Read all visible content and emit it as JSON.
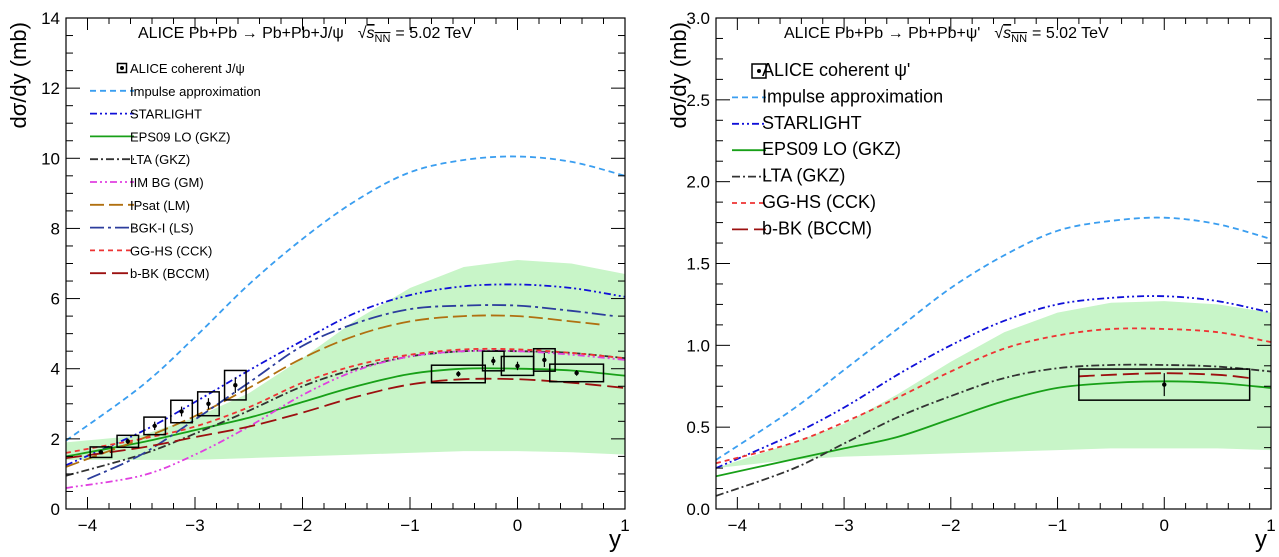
{
  "colors": {
    "band": "#c8f5c8",
    "impulse": "#3a9ef0",
    "starlight": "#1010d8",
    "eps09": "#18a018",
    "lta": "#333333",
    "iim": "#e040e0",
    "ipsat": "#b07010",
    "bgk": "#2c3d9c",
    "gghs": "#ee3333",
    "bbk": "#9c1010",
    "data": "#000000"
  },
  "chart_data": [
    {
      "type": "line",
      "title": "ALICE Pb+Pb → Pb+Pb+J/ψ",
      "title_energy_prefix": "√",
      "title_energy_s": "s",
      "title_energy_sub": "NN",
      "title_energy_value": "= 5.02 TeV",
      "xlabel": "y",
      "ylabel": "dσ/dy (mb)",
      "xlim": [
        -4.2,
        1
      ],
      "ylim": [
        0,
        14
      ],
      "xticks": [
        "−4",
        "−3",
        "−2",
        "−1",
        "0",
        "1"
      ],
      "xtick_values": [
        -4,
        -3,
        -2,
        -1,
        0,
        1
      ],
      "yticks": [
        "0",
        "2",
        "4",
        "6",
        "8",
        "10",
        "12",
        "14"
      ],
      "ytick_values": [
        0,
        2,
        4,
        6,
        8,
        10,
        12,
        14
      ],
      "grid": false,
      "legend_position": "top-left",
      "band": {
        "x": [
          -4.2,
          -3.5,
          -3,
          -2.5,
          -2,
          -1.5,
          -1,
          -0.5,
          0,
          0.5,
          1
        ],
        "upper": [
          1.9,
          2.1,
          2.6,
          3.3,
          4.3,
          5.4,
          6.3,
          6.9,
          7.1,
          7.0,
          6.7
        ],
        "lower": [
          1.4,
          1.4,
          1.4,
          1.45,
          1.5,
          1.55,
          1.6,
          1.65,
          1.65,
          1.62,
          1.55
        ]
      },
      "series": [
        {
          "name": "Impulse approximation",
          "color_key": "impulse",
          "dash": "6,4",
          "x": [
            -4.2,
            -3.5,
            -3,
            -2.5,
            -2,
            -1.5,
            -1,
            -0.5,
            0,
            0.5,
            1
          ],
          "y": [
            1.95,
            3.5,
            4.9,
            6.4,
            7.7,
            8.8,
            9.6,
            9.95,
            10.05,
            9.9,
            9.5
          ]
        },
        {
          "name": "STARLIGHT",
          "color_key": "starlight",
          "dash": "7,3,2,3,2,3",
          "x": [
            -4.2,
            -3.5,
            -3,
            -2.5,
            -2,
            -1.5,
            -1,
            -0.5,
            0,
            0.5,
            1
          ],
          "y": [
            1.25,
            2.2,
            3.05,
            3.95,
            4.8,
            5.6,
            6.1,
            6.35,
            6.4,
            6.3,
            6.05
          ]
        },
        {
          "name": "EPS09 LO (GKZ)",
          "color_key": "eps09",
          "dash": "",
          "x": [
            -4.2,
            -3.5,
            -3,
            -2.5,
            -2,
            -1.5,
            -1,
            -0.5,
            0,
            0.5,
            1
          ],
          "y": [
            1.5,
            1.9,
            2.25,
            2.6,
            3.05,
            3.5,
            3.85,
            4.0,
            4.0,
            3.95,
            3.8
          ]
        },
        {
          "name": "LTA (GKZ)",
          "color_key": "lta",
          "dash": "8,3,2,3",
          "x": [
            -4.2,
            -3.5,
            -3,
            -2.5,
            -2,
            -1.5,
            -1,
            -0.5,
            0,
            0.5,
            1
          ],
          "y": [
            0.95,
            1.55,
            2.15,
            2.8,
            3.5,
            4.0,
            4.35,
            4.5,
            4.5,
            4.45,
            4.3
          ]
        },
        {
          "name": "IIM BG (GM)",
          "color_key": "iim",
          "dash": "7,3,2,3,2,3",
          "x": [
            -4.2,
            -3.5,
            -3,
            -2.5,
            -2,
            -1.5,
            -1,
            -0.5,
            0,
            0.5,
            1
          ],
          "y": [
            0.6,
            0.95,
            1.55,
            2.35,
            3.25,
            3.95,
            4.35,
            4.5,
            4.5,
            4.4,
            4.25
          ]
        },
        {
          "name": "IPsat (LM)",
          "color_key": "ipsat",
          "dash": "14,5",
          "x": [
            -4.2,
            -3.5,
            -3,
            -2.5,
            -2,
            -1.5,
            -1,
            -0.5,
            0,
            0.5,
            0.8
          ],
          "y": [
            1.2,
            2.0,
            2.65,
            3.45,
            4.3,
            4.95,
            5.35,
            5.5,
            5.5,
            5.35,
            5.25
          ]
        },
        {
          "name": "BGK-I (LS)",
          "color_key": "bgk",
          "dash": "14,4,3,4",
          "x": [
            -4,
            -3.5,
            -3,
            -2.5,
            -2,
            -1.5,
            -1,
            -0.5,
            0,
            0.5,
            0.9
          ],
          "y": [
            0.85,
            1.55,
            2.55,
            3.6,
            4.65,
            5.3,
            5.7,
            5.8,
            5.8,
            5.65,
            5.5
          ]
        },
        {
          "name": "GG-HS (CCK)",
          "color_key": "gghs",
          "dash": "5,4",
          "x": [
            -4.2,
            -3.5,
            -3,
            -2.5,
            -2,
            -1.5,
            -1,
            -0.5,
            0,
            0.5,
            1
          ],
          "y": [
            1.6,
            2.0,
            2.35,
            2.9,
            3.6,
            4.1,
            4.4,
            4.55,
            4.55,
            4.45,
            4.3
          ]
        },
        {
          "name": "b-BK (BCCM)",
          "color_key": "bbk",
          "dash": "16,6",
          "x": [
            -4.2,
            -3.5,
            -3,
            -2.5,
            -2,
            -1.5,
            -1,
            -0.5,
            0,
            0.5,
            1
          ],
          "y": [
            1.45,
            1.75,
            2.05,
            2.35,
            2.75,
            3.2,
            3.55,
            3.7,
            3.7,
            3.6,
            3.45
          ]
        }
      ],
      "points": {
        "name": "ALICE coherent J/ψ",
        "x": [
          -3.875,
          -3.625,
          -3.375,
          -3.125,
          -2.875,
          -2.625,
          -0.55,
          -0.225,
          0.0,
          0.25,
          0.55
        ],
        "y": [
          1.62,
          1.93,
          2.37,
          2.78,
          3.0,
          3.53,
          3.85,
          4.22,
          4.08,
          4.25,
          3.88
        ],
        "stat": [
          0.05,
          0.08,
          0.12,
          0.14,
          0.16,
          0.22,
          0.08,
          0.12,
          0.12,
          0.2,
          0.08
        ],
        "sys": [
          0.15,
          0.17,
          0.25,
          0.32,
          0.34,
          0.42,
          0.25,
          0.28,
          0.27,
          0.32,
          0.25
        ],
        "xhalf": [
          0.1,
          0.1,
          0.1,
          0.1,
          0.1,
          0.1,
          0.25,
          0.1,
          0.15,
          0.1,
          0.25
        ]
      }
    },
    {
      "type": "line",
      "title": "ALICE Pb+Pb → Pb+Pb+ψ'",
      "title_energy_prefix": "√",
      "title_energy_s": "s",
      "title_energy_sub": "NN",
      "title_energy_value": "= 5.02 TeV",
      "xlabel": "y",
      "ylabel": "dσ/dy (mb)",
      "xlim": [
        -4.2,
        1
      ],
      "ylim": [
        0,
        3
      ],
      "xticks": [
        "−4",
        "−3",
        "−2",
        "−1",
        "0",
        "1"
      ],
      "xtick_values": [
        -4,
        -3,
        -2,
        -1,
        0,
        1
      ],
      "yticks": [
        "0.0",
        "0.5",
        "1.0",
        "1.5",
        "2.0",
        "2.5",
        "3.0"
      ],
      "ytick_values": [
        0,
        0.5,
        1,
        1.5,
        2,
        2.5,
        3
      ],
      "grid": false,
      "legend_position": "top-left",
      "band": {
        "x": [
          -4.2,
          -3.5,
          -3,
          -2.5,
          -2,
          -1.5,
          -1,
          -0.5,
          0,
          0.5,
          1
        ],
        "upper": [
          0.25,
          0.4,
          0.52,
          0.7,
          0.9,
          1.08,
          1.2,
          1.26,
          1.27,
          1.25,
          1.2
        ],
        "lower": [
          0.25,
          0.3,
          0.32,
          0.33,
          0.34,
          0.35,
          0.36,
          0.37,
          0.37,
          0.37,
          0.36
        ]
      },
      "series": [
        {
          "name": "Impulse approximation",
          "color_key": "impulse",
          "dash": "6,4",
          "x": [
            -4.2,
            -3.5,
            -3,
            -2.5,
            -2,
            -1.5,
            -1,
            -0.5,
            0,
            0.5,
            1
          ],
          "y": [
            0.3,
            0.6,
            0.85,
            1.1,
            1.35,
            1.55,
            1.7,
            1.76,
            1.78,
            1.74,
            1.65
          ]
        },
        {
          "name": "STARLIGHT",
          "color_key": "starlight",
          "dash": "7,3,2,3,2,3",
          "x": [
            -4.2,
            -3.5,
            -3,
            -2.5,
            -2,
            -1.5,
            -1,
            -0.5,
            0,
            0.5,
            1
          ],
          "y": [
            0.25,
            0.45,
            0.62,
            0.82,
            1.0,
            1.15,
            1.25,
            1.29,
            1.3,
            1.27,
            1.2
          ]
        },
        {
          "name": "EPS09 LO (GKZ)",
          "color_key": "eps09",
          "dash": "",
          "x": [
            -4.2,
            -3.5,
            -3,
            -2.5,
            -2,
            -1.5,
            -1,
            -0.5,
            0,
            0.5,
            1
          ],
          "y": [
            0.2,
            0.3,
            0.37,
            0.44,
            0.55,
            0.66,
            0.74,
            0.77,
            0.78,
            0.77,
            0.74
          ]
        },
        {
          "name": "LTA (GKZ)",
          "color_key": "lta",
          "dash": "8,3,2,3",
          "x": [
            -4.2,
            -3.5,
            -3,
            -2.5,
            -2,
            -1.5,
            -1,
            -0.5,
            0,
            0.5,
            1
          ],
          "y": [
            0.08,
            0.24,
            0.4,
            0.56,
            0.69,
            0.8,
            0.86,
            0.88,
            0.88,
            0.87,
            0.84
          ]
        },
        {
          "name": "GG-HS (CCK)",
          "color_key": "gghs",
          "dash": "5,4",
          "x": [
            -4.2,
            -3.5,
            -3,
            -2.5,
            -2,
            -1.5,
            -1,
            -0.5,
            0,
            0.5,
            1
          ],
          "y": [
            0.28,
            0.4,
            0.53,
            0.68,
            0.84,
            0.98,
            1.06,
            1.1,
            1.1,
            1.08,
            1.02
          ]
        },
        {
          "name": "b-BK (BCCM)",
          "color_key": "bbk",
          "dash": "16,6",
          "x": [
            -0.8,
            -0.5,
            0,
            0.5,
            0.8
          ],
          "y": [
            0.81,
            0.82,
            0.83,
            0.82,
            0.8
          ]
        }
      ],
      "points": {
        "name": "ALICE coherent ψ'",
        "x": [
          0.0
        ],
        "y": [
          0.76
        ],
        "stat": [
          0.07
        ],
        "sys": [
          0.095
        ],
        "xhalf": [
          0.8
        ]
      }
    }
  ],
  "legends": [
    {
      "marker_label": "ALICE coherent J/ψ",
      "items": [
        "Impulse approximation",
        "STARLIGHT",
        "EPS09 LO (GKZ)",
        "LTA (GKZ)",
        "IIM BG (GM)",
        "IPsat (LM)",
        "BGK-I (LS)",
        "GG-HS (CCK)",
        "b-BK (BCCM)"
      ]
    },
    {
      "marker_label": "ALICE coherent ψ'",
      "items": [
        "Impulse approximation",
        "STARLIGHT",
        "EPS09 LO (GKZ)",
        "LTA (GKZ)",
        "GG-HS (CCK)",
        "b-BK (BCCM)"
      ]
    }
  ]
}
